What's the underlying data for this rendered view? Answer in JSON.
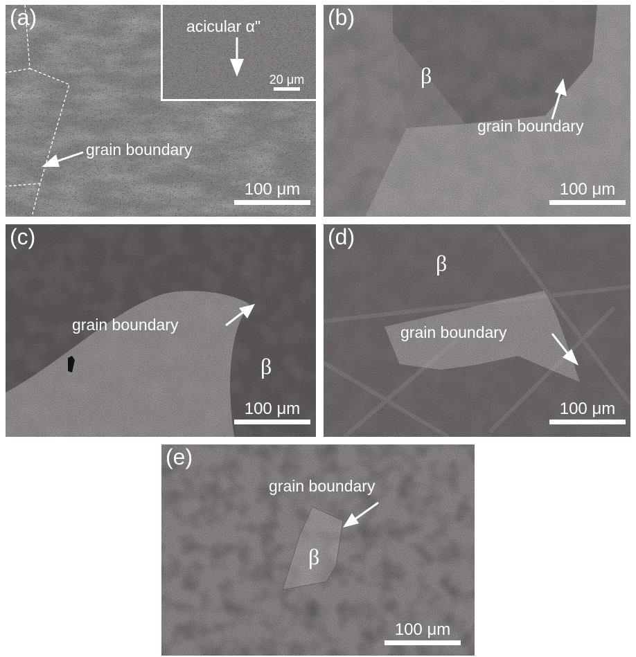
{
  "panels": {
    "a": {
      "label": "(a)",
      "annotation": "grain boundary",
      "scale_bar": "100 μm",
      "inset": {
        "annotation": "acicular α\"",
        "scale_bar": "20 μm"
      }
    },
    "b": {
      "label": "(b)",
      "phase": "β",
      "annotation": "grain boundary",
      "scale_bar": "100 μm"
    },
    "c": {
      "label": "(c)",
      "phase": "β",
      "annotation": "grain boundary",
      "scale_bar": "100 μm"
    },
    "d": {
      "label": "(d)",
      "phase": "β",
      "annotation": "grain boundary",
      "scale_bar": "100 μm"
    },
    "e": {
      "label": "(e)",
      "phase": "β",
      "annotation": "grain boundary",
      "scale_bar": "100 μm"
    }
  },
  "colors": {
    "annotation": "#ffffff",
    "background": "#ffffff"
  }
}
